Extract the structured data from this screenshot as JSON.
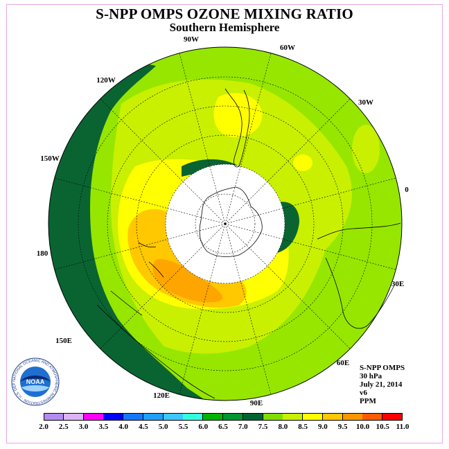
{
  "title": "S-NPP OMPS OZONE MIXING RATIO",
  "subtitle": "Southern Hemisphere",
  "longitude_labels": [
    "90W",
    "60W",
    "120W",
    "30W",
    "150W",
    "0",
    "180",
    "30E",
    "150E",
    "60E",
    "120E",
    "90E"
  ],
  "info": {
    "instrument": "S-NPP OMPS",
    "level": "30 hPa",
    "date": "July 21, 2014",
    "version": "v6",
    "units": "PPM"
  },
  "colorbar": {
    "ticks": [
      "2.0",
      "2.5",
      "3.0",
      "3.5",
      "4.0",
      "4.5",
      "5.0",
      "5.5",
      "6.0",
      "6.5",
      "7.0",
      "7.5",
      "8.0",
      "8.5",
      "9.0",
      "9.5",
      "10.0",
      "10.5",
      "11.0"
    ],
    "colors": [
      "#b48cf0",
      "#dcb4f5",
      "#ff00ff",
      "#0000ff",
      "#1478ff",
      "#1ea0ff",
      "#3cc8ff",
      "#32ffdc",
      "#00b400",
      "#009632",
      "#006432",
      "#82dc00",
      "#c8f000",
      "#ffff00",
      "#ffc800",
      "#ff9600",
      "#ff5a00",
      "#ff0000",
      "#8c5a3c"
    ]
  },
  "logo": {
    "text": "NOAA",
    "ring_text": "NATIONAL OCEANIC AND ATMOSPHERIC ADMINISTRATION · U.S. DEPARTMENT OF COMMERCE"
  },
  "colors": {
    "frame": "#e6a6e6",
    "dark_green": "#0a6432",
    "lime": "#96e600",
    "light_lime": "#c8f000",
    "yellow": "#ffff00",
    "gold": "#ffc800",
    "orange": "#ffa500",
    "polar_night": "#ffffff"
  }
}
